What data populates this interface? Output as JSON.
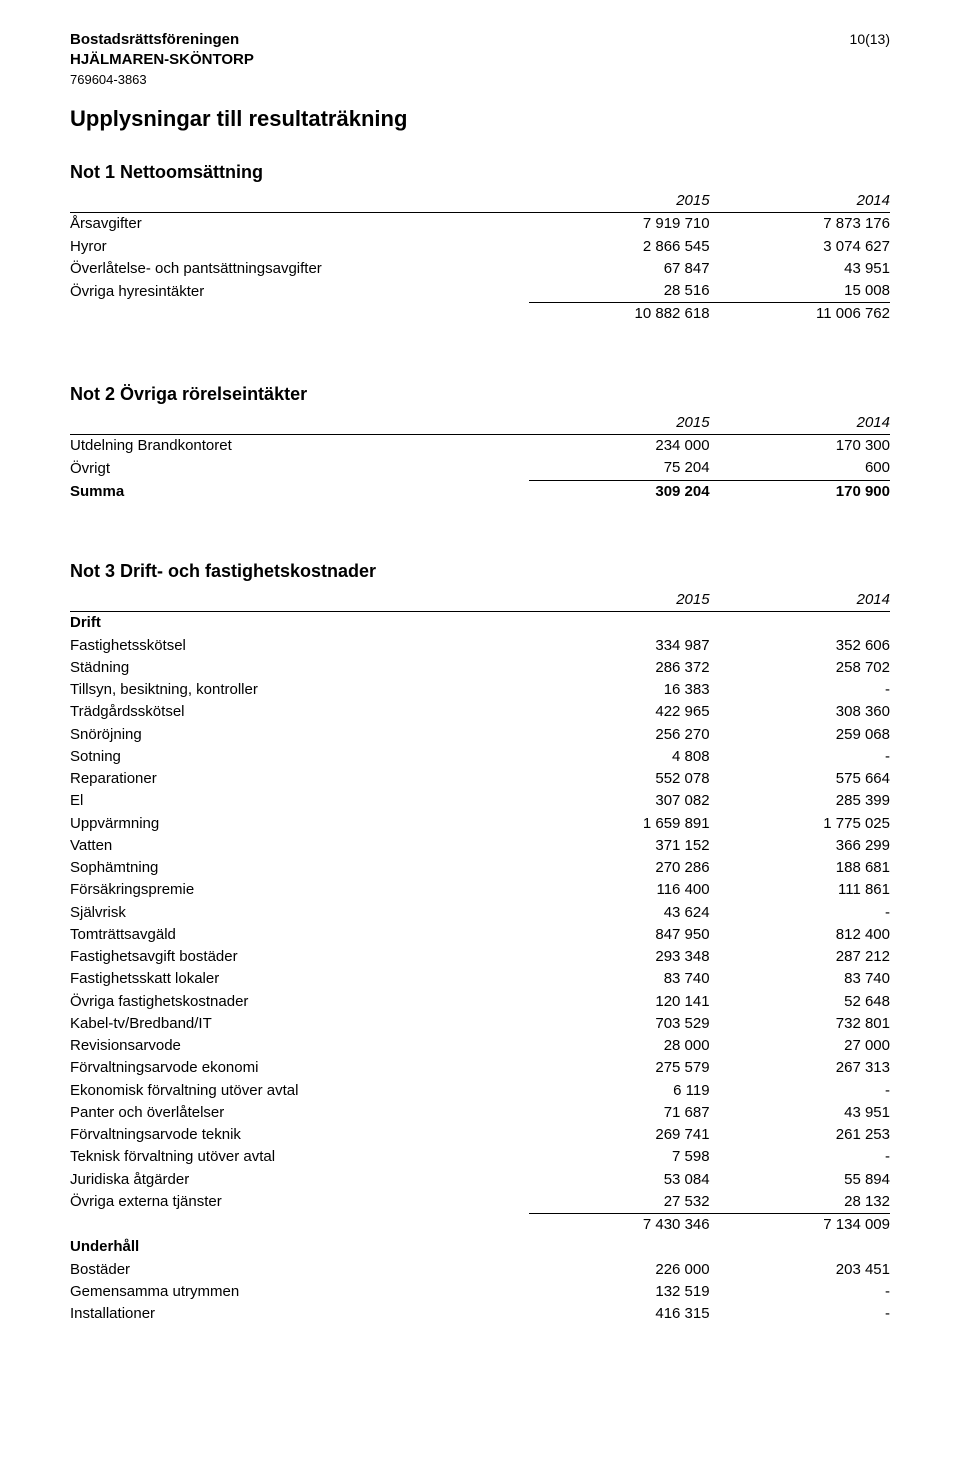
{
  "header": {
    "org_line1": "Bostadsrättsföreningen",
    "org_line2": "HJÄLMAREN-SKÖNTORP",
    "org_num": "769604-3863",
    "page_num": "10(13)"
  },
  "section_title": "Upplysningar till resultaträkning",
  "year_2015": "2015",
  "year_2014": "2014",
  "not1": {
    "title": "Not 1  Nettoomsättning",
    "rows": [
      {
        "label": "Årsavgifter",
        "c1": "7 919 710",
        "c2": "7 873 176"
      },
      {
        "label": "Hyror",
        "c1": "2 866 545",
        "c2": "3 074 627"
      },
      {
        "label": "Överlåtelse- och pantsättningsavgifter",
        "c1": "67 847",
        "c2": "43 951"
      },
      {
        "label": "Övriga hyresintäkter",
        "c1": "28 516",
        "c2": "15 008",
        "underline": true
      },
      {
        "label": "",
        "c1": "10 882 618",
        "c2": "11 006 762"
      }
    ]
  },
  "not2": {
    "title": "Not 2  Övriga rörelseintäkter",
    "rows": [
      {
        "label": "Utdelning Brandkontoret",
        "c1": "234 000",
        "c2": "170 300"
      },
      {
        "label": "Övrigt",
        "c1": "75 204",
        "c2": "600",
        "underline": true
      },
      {
        "label": "Summa",
        "c1": "309 204",
        "c2": "170 900",
        "bold": true
      }
    ]
  },
  "not3": {
    "title": "Not 3  Drift- och fastighetskostnader",
    "drift_label": "Drift",
    "drift_rows": [
      {
        "label": "Fastighetsskötsel",
        "c1": "334 987",
        "c2": "352 606"
      },
      {
        "label": "Städning",
        "c1": "286 372",
        "c2": "258 702"
      },
      {
        "label": "Tillsyn, besiktning, kontroller",
        "c1": "16 383",
        "c2": "-"
      },
      {
        "label": "Trädgårdsskötsel",
        "c1": "422 965",
        "c2": "308 360"
      },
      {
        "label": "Snöröjning",
        "c1": "256 270",
        "c2": "259 068"
      },
      {
        "label": "Sotning",
        "c1": "4 808",
        "c2": "-"
      },
      {
        "label": "Reparationer",
        "c1": "552 078",
        "c2": "575 664"
      },
      {
        "label": "El",
        "c1": "307 082",
        "c2": "285 399"
      },
      {
        "label": "Uppvärmning",
        "c1": "1 659 891",
        "c2": "1 775 025"
      },
      {
        "label": "Vatten",
        "c1": "371 152",
        "c2": "366 299"
      },
      {
        "label": "Sophämtning",
        "c1": "270 286",
        "c2": "188 681"
      },
      {
        "label": "Försäkringspremie",
        "c1": "116 400",
        "c2": "111 861"
      },
      {
        "label": "Självrisk",
        "c1": "43 624",
        "c2": "-"
      },
      {
        "label": "Tomträttsavgäld",
        "c1": "847 950",
        "c2": "812 400"
      },
      {
        "label": "Fastighetsavgift bostäder",
        "c1": "293 348",
        "c2": "287 212"
      },
      {
        "label": "Fastighetsskatt lokaler",
        "c1": "83 740",
        "c2": "83 740"
      },
      {
        "label": "Övriga fastighetskostnader",
        "c1": "120 141",
        "c2": "52 648"
      },
      {
        "label": "Kabel-tv/Bredband/IT",
        "c1": "703 529",
        "c2": "732 801"
      },
      {
        "label": "Revisionsarvode",
        "c1": "28 000",
        "c2": "27 000"
      },
      {
        "label": "Förvaltningsarvode ekonomi",
        "c1": "275 579",
        "c2": "267 313"
      },
      {
        "label": "Ekonomisk förvaltning utöver avtal",
        "c1": "6 119",
        "c2": "-"
      },
      {
        "label": "Panter och överlåtelser",
        "c1": "71 687",
        "c2": "43 951"
      },
      {
        "label": "Förvaltningsarvode teknik",
        "c1": "269 741",
        "c2": "261 253"
      },
      {
        "label": "Teknisk förvaltning utöver avtal",
        "c1": "7 598",
        "c2": "-"
      },
      {
        "label": "Juridiska åtgärder",
        "c1": "53 084",
        "c2": "55 894"
      },
      {
        "label": "Övriga externa tjänster",
        "c1": "27 532",
        "c2": "28 132",
        "underline": true
      },
      {
        "label": "",
        "c1": "7 430 346",
        "c2": "7 134 009"
      }
    ],
    "underhall_label": "Underhåll",
    "underhall_rows": [
      {
        "label": "Bostäder",
        "c1": "226 000",
        "c2": "203 451"
      },
      {
        "label": "Gemensamma utrymmen",
        "c1": "132 519",
        "c2": "-"
      },
      {
        "label": "Installationer",
        "c1": "416 315",
        "c2": "-"
      }
    ]
  }
}
